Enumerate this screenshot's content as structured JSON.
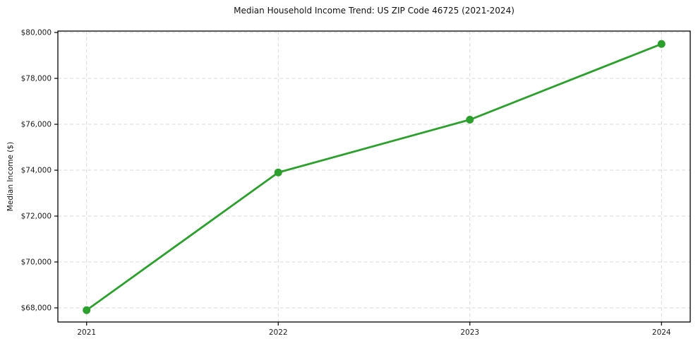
{
  "figure": {
    "background": "#ffffff"
  },
  "chart_data": {
    "type": "line",
    "title": "Median Household Income Trend: US ZIP Code 46725 (2021-2024)",
    "xlabel": "",
    "ylabel": "Median Income ($)",
    "x": [
      2021,
      2022,
      2023,
      2024
    ],
    "series": [
      {
        "name": "Median Household Income",
        "values": [
          67900,
          73900,
          76200,
          79500
        ]
      }
    ],
    "xticks": [
      2021,
      2022,
      2023,
      2024
    ],
    "xtick_labels": [
      "2021",
      "2022",
      "2023",
      "2024"
    ],
    "yticks": [
      68000,
      70000,
      72000,
      74000,
      76000,
      78000,
      80000
    ],
    "ytick_labels": [
      "$68,000",
      "$70,000",
      "$72,000",
      "$74,000",
      "$76,000",
      "$78,000",
      "$80,000"
    ],
    "xlim": [
      2020.85,
      2024.15
    ],
    "ylim": [
      67385,
      80062
    ],
    "grid": true,
    "grid_style": "dashed",
    "legend_position": "none",
    "colors": {
      "line": "#2ca02c",
      "marker": "#2ca02c",
      "grid": "#d9d9d9",
      "spine": "#000000",
      "tick_label": "#1a1a1a",
      "title": "#111111"
    }
  }
}
